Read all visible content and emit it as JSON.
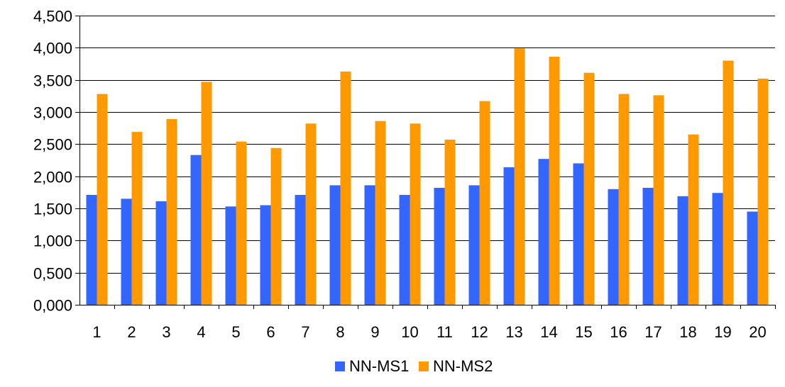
{
  "chart_data": {
    "type": "bar",
    "title": "",
    "xlabel": "",
    "ylabel": "",
    "categories": [
      "1",
      "2",
      "3",
      "4",
      "5",
      "6",
      "7",
      "8",
      "9",
      "10",
      "11",
      "12",
      "13",
      "14",
      "15",
      "16",
      "17",
      "18",
      "19",
      "20"
    ],
    "series": [
      {
        "name": "NN-MS1",
        "color": "#3366ff",
        "values": [
          1.71,
          1.65,
          1.61,
          2.33,
          1.53,
          1.55,
          1.71,
          1.86,
          1.86,
          1.71,
          1.82,
          1.86,
          2.14,
          2.27,
          2.2,
          1.8,
          1.82,
          1.69,
          1.74,
          1.45
        ]
      },
      {
        "name": "NN-MS2",
        "color": "#ff9900",
        "values": [
          3.28,
          2.69,
          2.89,
          3.47,
          2.54,
          2.44,
          2.82,
          3.63,
          2.86,
          2.82,
          2.57,
          3.17,
          3.99,
          3.86,
          3.61,
          3.28,
          3.26,
          2.65,
          3.8,
          3.52
        ]
      }
    ],
    "ylim": [
      0,
      4.5
    ],
    "yticks": [
      0,
      0.5,
      1,
      1.5,
      2,
      2.5,
      3,
      3.5,
      4,
      4.5
    ],
    "ytick_labels": [
      "0,000",
      "0,500",
      "1,000",
      "1,500",
      "2,000",
      "2,500",
      "3,000",
      "3,500",
      "4,000",
      "4,500"
    ],
    "grid": true,
    "legend_position": "bottom"
  }
}
